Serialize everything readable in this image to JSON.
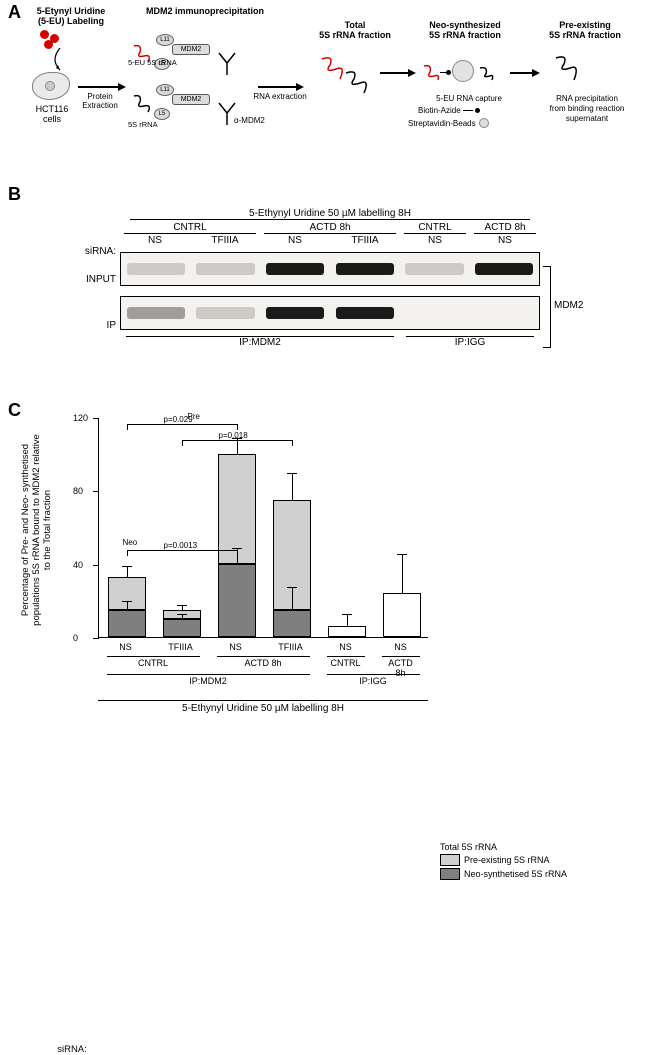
{
  "panelA": {
    "label": "A",
    "step1_title": "5-Etynyl Uridine\n(5-EU) Labeling",
    "step2_title": "MDM2 immunoprecipitation",
    "step3_title": "Total\n5S rRNA fraction",
    "step4_title": "Neo-synthesized\n5S rRNA fraction",
    "step5_title": "Pre-existing\n5S rRNA fraction",
    "cells_label": "HCT116\ncells",
    "arrow1": "Protein Extraction",
    "arrow3": "RNA extraction",
    "arrow4_line1": "5-EU RNA capture",
    "arrow4_line2": "Biotin-Azide",
    "arrow4_line3": "Streptavidin-Beads",
    "arrow5_line1": "RNA precipitation",
    "arrow5_line2": "from binding reaction",
    "arrow5_line3": "supernatant",
    "alpha_mdm2": "α-MDM2",
    "labels": {
      "rna5eu": "5-EU 5S rRNA",
      "rna5s": "5S rRNA",
      "l11": "L11",
      "l5": "L5",
      "mdm2": "MDM2"
    }
  },
  "panelB": {
    "label": "B",
    "top_header": "5-Ethynyl Uridine 50 µM labelling 8H",
    "treat_groups": [
      "CNTRL",
      "ACTD 8h",
      "CNTRL",
      "ACTD 8h"
    ],
    "siRNA_label": "siRNA:",
    "lanes": [
      "NS",
      "TFIIIA",
      "NS",
      "TFIIIA",
      "NS",
      "NS"
    ],
    "row_labels": [
      "INPUT",
      "IP"
    ],
    "right_label": "MDM2",
    "ip_groups": [
      "IP:MDM2",
      "IP:IGG"
    ],
    "input_bands": [
      "faint",
      "faint",
      "strong",
      "strong",
      "faint",
      "strong"
    ],
    "ip_bands": [
      "weak",
      "faint",
      "strong",
      "strong",
      "none",
      "none"
    ]
  },
  "panelC": {
    "label": "C",
    "ylabel": "Percentage of Pre- and Neo- synthetised populations 5S rRNA bound to MDM2 relative to the Total fraction",
    "ymax": 120,
    "ytick": 40,
    "colors": {
      "total": "#ffffff",
      "pre": "#d0d0d0",
      "neo": "#7f7f7f"
    },
    "legend": {
      "total": "Total 5S rRNA",
      "pre": "Pre-existing 5S rRNA",
      "neo": "Neo-synthetised 5S rRNA"
    },
    "sig": {
      "pre_label": "Pre",
      "pre_a": "p=0.029",
      "pre_b": "p=0.018",
      "neo_label": "Neo",
      "neo_a": "p=0.0013"
    },
    "bars": [
      {
        "neo": 15,
        "pre": 18,
        "neo_err": 4,
        "pre_err": 5
      },
      {
        "neo": 10,
        "pre": 5,
        "neo_err": 2,
        "pre_err": 2
      },
      {
        "neo": 40,
        "pre": 60,
        "neo_err": 8,
        "pre_err": 8
      },
      {
        "neo": 15,
        "pre": 60,
        "neo_err": 12,
        "pre_err": 14
      },
      {
        "total": 6,
        "err": 6
      },
      {
        "total": 24,
        "err": 21
      }
    ],
    "x_siRNA": [
      "NS",
      "TFIIIA",
      "NS",
      "TFIIIA",
      "NS",
      "NS"
    ],
    "x_treat_groups": [
      {
        "label": "CNTRL",
        "span": [
          0,
          1
        ]
      },
      {
        "label": "ACTD 8h",
        "span": [
          2,
          3
        ]
      },
      {
        "label": "CNTRL",
        "span": [
          4,
          4
        ]
      },
      {
        "label": "ACTD 8h",
        "span": [
          5,
          5
        ]
      }
    ],
    "x_ip_groups": [
      {
        "label": "IP:MDM2",
        "span": [
          0,
          3
        ]
      },
      {
        "label": "IP:IGG",
        "span": [
          4,
          5
        ]
      }
    ],
    "siRNA_label": "siRNA:",
    "bottom_header": "5-Ethynyl Uridine 50 µM labelling 8H"
  }
}
